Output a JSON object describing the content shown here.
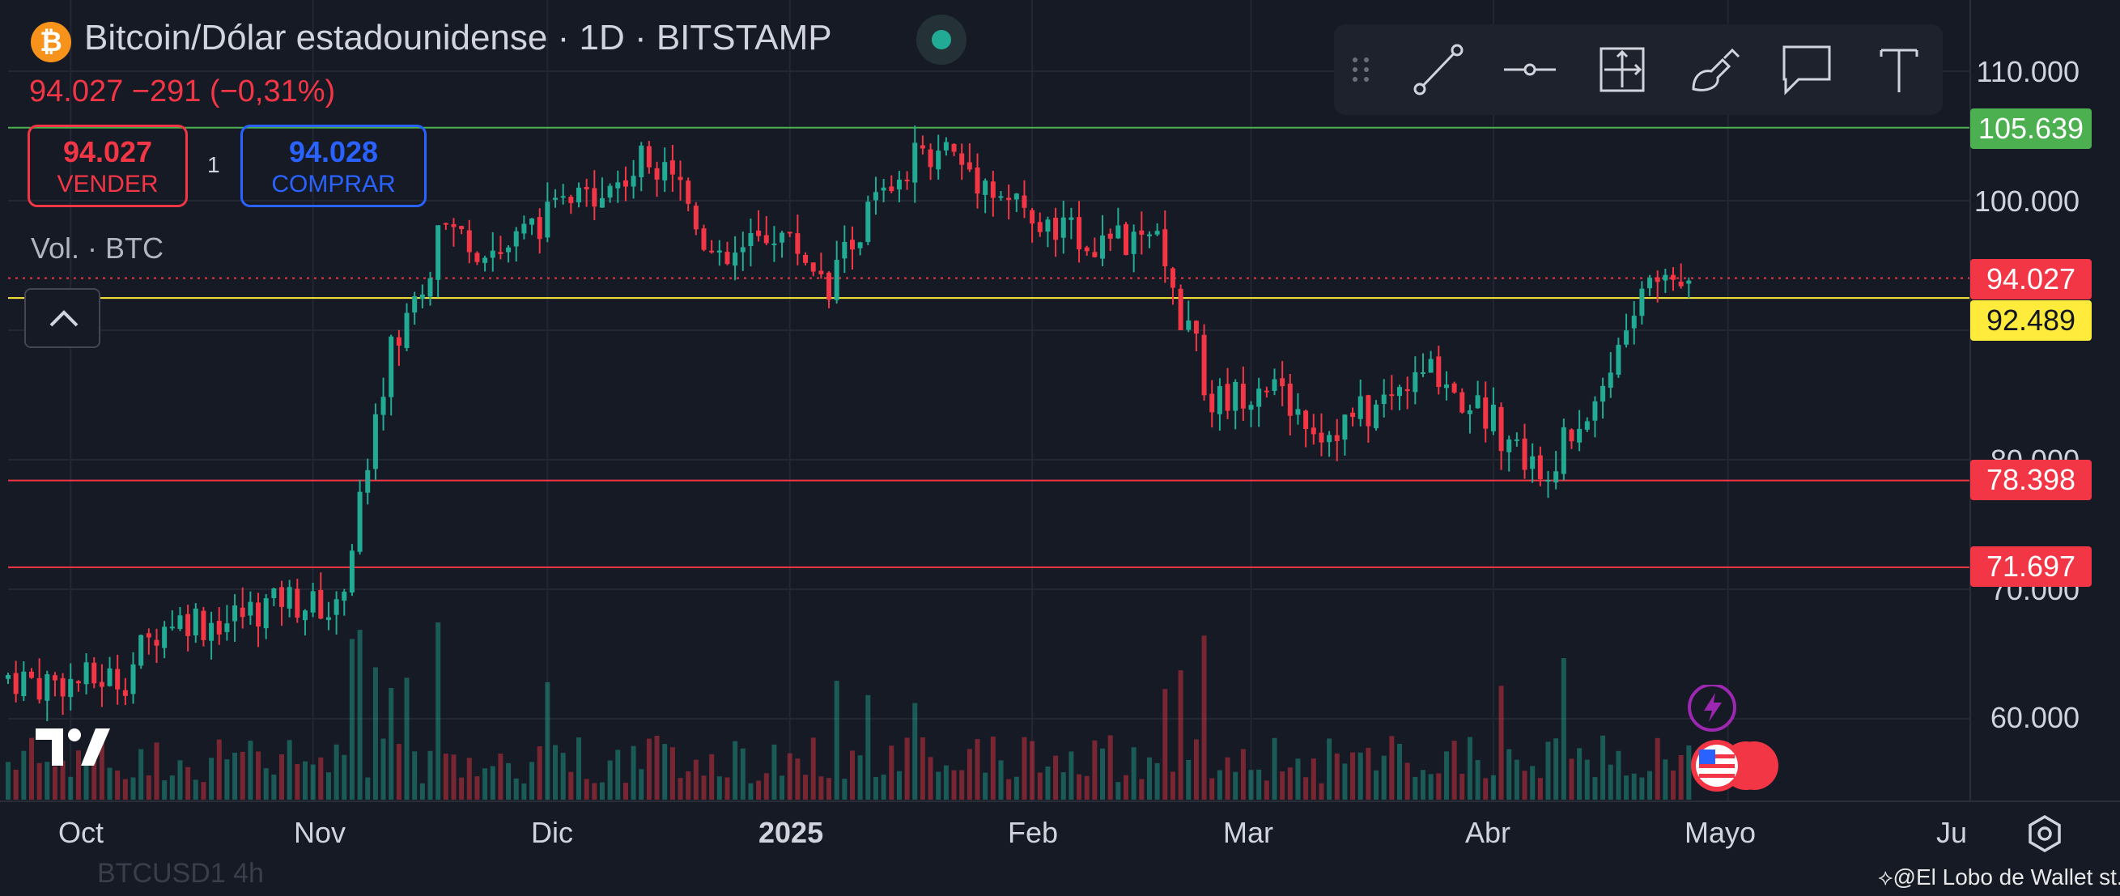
{
  "header": {
    "title": "Bitcoin/Dólar estadounidense · 1D · BITSTAMP",
    "price_change": "94.027  −291 (−0,31%)",
    "sell_price": "94.027",
    "sell_label": "VENDER",
    "buy_price": "94.028",
    "buy_label": "COMPRAR",
    "quantity": "1",
    "volume_label": "Vol. · BTC"
  },
  "toolbar": {
    "tools": [
      "drag-handle-icon",
      "trend-line-icon",
      "horizontal-ray-icon",
      "measure-icon",
      "brush-icon",
      "callout-icon",
      "text-icon"
    ]
  },
  "price_axis": {
    "ticks": [
      "110.000",
      "100.000",
      "80.000",
      "70.000",
      "60.000"
    ]
  },
  "horizontal_lines": [
    {
      "label": "105.639",
      "line_color": "#4caf50",
      "label_bg": "#4caf50",
      "label_color": "#ffffff"
    },
    {
      "label": "94.027",
      "line_color": "#f23645",
      "label_bg": "#f23645",
      "label_color": "#ffffff"
    },
    {
      "label": "92.489",
      "line_color": "#ffeb3b",
      "label_bg": "#ffeb3b",
      "label_color": "#131722"
    },
    {
      "label": "78.398",
      "line_color": "#f23645",
      "label_bg": "#f23645",
      "label_color": "#ffffff"
    },
    {
      "label": "71.697",
      "line_color": "#f23645",
      "label_bg": "#f23645",
      "label_color": "#ffffff"
    }
  ],
  "time_axis": {
    "labels": [
      "Oct",
      "Nov",
      "Dic",
      "2025",
      "Feb",
      "Mar",
      "Abr",
      "Mayo",
      "Ju"
    ]
  },
  "footer": {
    "credit": "@El Lobo de Wallet st...",
    "ghost_text": "BTCUSD1    4h"
  },
  "colors": {
    "up": "#22ab94",
    "down": "#f23645",
    "background": "#161a25",
    "grid": "#232733"
  },
  "chart_data": {
    "type": "candlestick",
    "symbol": "BTCUSD",
    "interval": "1D",
    "exchange": "BITSTAMP",
    "x_range": [
      "2024-09-23",
      "2025-06-01"
    ],
    "y_axis_ticks": [
      60000,
      70000,
      80000,
      100000,
      110000
    ],
    "reference_levels": [
      105639,
      94027,
      92489,
      78398,
      71697
    ],
    "last_price": 94027,
    "change": -291,
    "change_pct": -0.31,
    "daily_closes": [
      {
        "date": "2024-09-23",
        "close": 63200
      },
      {
        "date": "2024-09-30",
        "close": 62800
      },
      {
        "date": "2024-10-07",
        "close": 63000
      },
      {
        "date": "2024-10-14",
        "close": 67800
      },
      {
        "date": "2024-10-21",
        "close": 67500
      },
      {
        "date": "2024-10-28",
        "close": 69500
      },
      {
        "date": "2024-11-04",
        "close": 68000
      },
      {
        "date": "2024-11-11",
        "close": 88500
      },
      {
        "date": "2024-11-18",
        "close": 98000
      },
      {
        "date": "2024-11-25",
        "close": 96000
      },
      {
        "date": "2024-12-02",
        "close": 99500
      },
      {
        "date": "2024-12-09",
        "close": 101000
      },
      {
        "date": "2024-12-16",
        "close": 104000
      },
      {
        "date": "2024-12-23",
        "close": 94500
      },
      {
        "date": "2024-12-30",
        "close": 98000
      },
      {
        "date": "2025-01-06",
        "close": 94000
      },
      {
        "date": "2025-01-13",
        "close": 101000
      },
      {
        "date": "2025-01-20",
        "close": 104500
      },
      {
        "date": "2025-01-27",
        "close": 101000
      },
      {
        "date": "2025-02-03",
        "close": 97500
      },
      {
        "date": "2025-02-10",
        "close": 97000
      },
      {
        "date": "2025-02-17",
        "close": 96500
      },
      {
        "date": "2025-02-24",
        "close": 84500
      },
      {
        "date": "2025-03-03",
        "close": 86000
      },
      {
        "date": "2025-03-10",
        "close": 82000
      },
      {
        "date": "2025-03-17",
        "close": 84000
      },
      {
        "date": "2025-03-24",
        "close": 87000
      },
      {
        "date": "2025-03-31",
        "close": 83500
      },
      {
        "date": "2025-04-07",
        "close": 79000
      },
      {
        "date": "2025-04-14",
        "close": 84500
      },
      {
        "date": "2025-04-21",
        "close": 94000
      },
      {
        "date": "2025-04-26",
        "close": 94027
      }
    ]
  }
}
